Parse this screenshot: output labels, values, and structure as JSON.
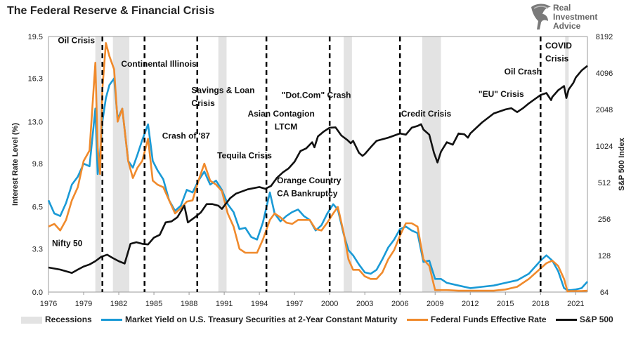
{
  "title": "The Federal Reserve & Financial Crisis",
  "logo": {
    "lines": [
      "Real",
      "Investment",
      "Advice"
    ]
  },
  "chart_data": {
    "type": "line",
    "title": "The Federal Reserve & Financial Crisis",
    "ylabel_left": "Interest Rate Level (%)",
    "ylabel_right": "S&P 500 Index",
    "ylim_left": [
      0,
      19.5
    ],
    "ylim_right": [
      64,
      8192
    ],
    "right_scale": "log2",
    "xlim": [
      1976,
      2022
    ],
    "x_ticks": [
      "1976",
      "1979",
      "1982",
      "1985",
      "1988",
      "1991",
      "1994",
      "1997",
      "2000",
      "2003",
      "2006",
      "2009",
      "2012",
      "2015",
      "2018",
      "2021"
    ],
    "y_ticks_left": [
      "0.0",
      "3.3",
      "6.5",
      "9.8",
      "13.0",
      "16.3",
      "19.5"
    ],
    "y_ticks_right": [
      "64",
      "128",
      "256",
      "512",
      "1024",
      "2048",
      "4096",
      "8192"
    ],
    "legend_position": "bottom",
    "recessions": [
      [
        1980.0,
        1980.5
      ],
      [
        1981.5,
        1982.9
      ],
      [
        1990.5,
        1991.2
      ],
      [
        2001.2,
        2001.9
      ],
      [
        2007.9,
        2009.5
      ],
      [
        2020.1,
        2020.4
      ]
    ],
    "crisis_lines": [
      1980.6,
      1984.2,
      1988.7,
      1994.6,
      2000.0,
      2006.0,
      2018.0
    ],
    "annotations": [
      {
        "text": "Oil Crisis",
        "x": 1976.8,
        "y": 19.0
      },
      {
        "text": "Continental Illinois",
        "x": 1982.2,
        "y": 17.2
      },
      {
        "text": "Savings & Loan",
        "x": 1988.2,
        "y": 15.2
      },
      {
        "text": "Crisis",
        "x": 1988.2,
        "y": 14.2
      },
      {
        "text": "\"Dot.Com\" Crash",
        "x": 1995.9,
        "y": 14.8
      },
      {
        "text": "Asian Contagion",
        "x": 1993.0,
        "y": 13.4
      },
      {
        "text": "LTCM",
        "x": 1995.3,
        "y": 12.4
      },
      {
        "text": "Credit Crisis",
        "x": 2006.1,
        "y": 13.4
      },
      {
        "text": "\"EU\" Crisis",
        "x": 2012.7,
        "y": 14.9
      },
      {
        "text": "Oil Crash",
        "x": 2014.9,
        "y": 16.6
      },
      {
        "text": "COVID",
        "x": 2018.4,
        "y": 18.6
      },
      {
        "text": "Crisis",
        "x": 2018.4,
        "y": 17.6
      },
      {
        "text": "Crash of '87",
        "x": 1985.7,
        "y": 11.7
      },
      {
        "text": "Tequila Crisis",
        "x": 1990.4,
        "y": 10.2
      },
      {
        "text": "Orange Country",
        "x": 1995.5,
        "y": 8.3
      },
      {
        "text": "CA Bankruptcy",
        "x": 1995.5,
        "y": 7.3
      },
      {
        "text": "Nifty 50",
        "x": 1976.3,
        "y": 3.5
      }
    ],
    "series": [
      {
        "name": "Market Yield on U.S. Treasury Securities at 2-Year Constant Maturity",
        "color": "#1a9ad6",
        "axis": "left",
        "x": [
          1976,
          1976.5,
          1977,
          1977.5,
          1978,
          1978.5,
          1979,
          1979.5,
          1980,
          1980.2,
          1980.4,
          1980.6,
          1980.9,
          1981.2,
          1981.6,
          1981.9,
          1982.3,
          1982.8,
          1983.2,
          1983.6,
          1984,
          1984.5,
          1984.9,
          1985.3,
          1985.8,
          1986.3,
          1986.8,
          1987.3,
          1987.8,
          1988.3,
          1988.8,
          1989.3,
          1989.8,
          1990.3,
          1990.8,
          1991.3,
          1991.8,
          1992.3,
          1992.8,
          1993.3,
          1993.8,
          1994.3,
          1994.9,
          1995.3,
          1995.8,
          1996.3,
          1996.8,
          1997.3,
          1997.8,
          1998.3,
          1998.8,
          1999.3,
          1999.8,
          2000.3,
          2000.7,
          2001.2,
          2001.6,
          2002,
          2002.5,
          2003,
          2003.5,
          2004,
          2004.5,
          2005,
          2005.5,
          2006,
          2006.5,
          2007,
          2007.5,
          2008,
          2008.5,
          2009,
          2009.5,
          2010,
          2011,
          2012,
          2013,
          2014,
          2015,
          2016,
          2017,
          2018,
          2018.5,
          2019,
          2019.5,
          2020,
          2020.3,
          2020.6,
          2021,
          2021.5,
          2022
        ],
        "values": [
          7.0,
          6.0,
          5.8,
          6.8,
          8.2,
          8.8,
          9.8,
          9.6,
          14.0,
          9.0,
          10.5,
          13.0,
          14.8,
          15.8,
          16.3,
          13.2,
          14.0,
          10.0,
          9.5,
          10.5,
          11.6,
          12.8,
          10.0,
          9.3,
          8.6,
          7.0,
          6.2,
          6.6,
          7.8,
          7.6,
          8.5,
          9.2,
          8.2,
          8.5,
          7.8,
          6.7,
          6.1,
          4.8,
          4.9,
          4.2,
          4.0,
          5.3,
          7.6,
          6.0,
          5.4,
          5.8,
          6.1,
          6.3,
          5.8,
          5.5,
          4.7,
          5.1,
          6.0,
          6.7,
          6.3,
          4.4,
          3.2,
          2.8,
          2.1,
          1.5,
          1.4,
          1.7,
          2.5,
          3.4,
          4.0,
          4.8,
          5.0,
          4.7,
          4.5,
          2.3,
          2.4,
          1.0,
          1.0,
          0.7,
          0.5,
          0.3,
          0.4,
          0.5,
          0.7,
          0.9,
          1.4,
          2.4,
          2.8,
          2.4,
          1.6,
          0.3,
          0.15,
          0.15,
          0.2,
          0.3,
          0.8
        ]
      },
      {
        "name": "Federal Funds Effective Rate",
        "color": "#f08a2c",
        "axis": "left",
        "x": [
          1976,
          1976.5,
          1977,
          1977.5,
          1978,
          1978.5,
          1979,
          1979.5,
          1980,
          1980.2,
          1980.4,
          1980.6,
          1980.9,
          1981.2,
          1981.6,
          1981.9,
          1982.3,
          1982.8,
          1983.2,
          1983.6,
          1984,
          1984.5,
          1984.9,
          1985.3,
          1985.8,
          1986.3,
          1986.8,
          1987.3,
          1987.8,
          1988.3,
          1988.8,
          1989.3,
          1989.8,
          1990.3,
          1990.8,
          1991.3,
          1991.8,
          1992.3,
          1992.8,
          1993.3,
          1993.8,
          1994.3,
          1994.9,
          1995.3,
          1995.8,
          1996.3,
          1996.8,
          1997.3,
          1997.8,
          1998.3,
          1998.8,
          1999.3,
          1999.8,
          2000.3,
          2000.7,
          2001.2,
          2001.6,
          2002,
          2002.5,
          2003,
          2003.5,
          2004,
          2004.5,
          2005,
          2005.5,
          2006,
          2006.5,
          2007,
          2007.5,
          2008,
          2008.5,
          2009,
          2009.5,
          2010,
          2011,
          2012,
          2013,
          2014,
          2015,
          2016,
          2017,
          2018,
          2018.5,
          2019,
          2019.5,
          2020,
          2020.3,
          2020.6,
          2021,
          2021.5,
          2022
        ],
        "values": [
          5.0,
          5.2,
          4.7,
          5.5,
          7.0,
          8.0,
          10.0,
          10.8,
          17.5,
          11.0,
          9.0,
          15.5,
          19.0,
          18.0,
          17.0,
          13.0,
          14.0,
          10.0,
          8.7,
          9.5,
          10.0,
          11.7,
          8.5,
          8.2,
          8.0,
          7.0,
          6.0,
          6.4,
          6.9,
          7.0,
          8.5,
          9.8,
          8.5,
          8.2,
          7.7,
          6.0,
          5.0,
          3.3,
          3.0,
          3.0,
          3.0,
          4.0,
          5.5,
          6.0,
          5.7,
          5.3,
          5.2,
          5.5,
          5.5,
          5.5,
          4.8,
          4.7,
          5.3,
          6.0,
          6.5,
          4.5,
          2.5,
          1.7,
          1.7,
          1.2,
          1.0,
          1.0,
          1.5,
          2.5,
          3.2,
          4.3,
          5.25,
          5.25,
          5.0,
          2.5,
          2.0,
          0.15,
          0.15,
          0.15,
          0.1,
          0.1,
          0.1,
          0.1,
          0.2,
          0.4,
          1.0,
          1.8,
          2.2,
          2.4,
          2.0,
          1.0,
          0.05,
          0.08,
          0.08,
          0.08,
          0.1
        ]
      },
      {
        "name": "S&P 500",
        "color": "#111111",
        "axis": "right",
        "x": [
          1976,
          1977,
          1978,
          1978.5,
          1979,
          1979.5,
          1980,
          1980.5,
          1981,
          1981.5,
          1982,
          1982.5,
          1983,
          1983.5,
          1984,
          1984.5,
          1985,
          1985.5,
          1986,
          1986.5,
          1987,
          1987.6,
          1987.9,
          1988.5,
          1989,
          1989.5,
          1990,
          1990.5,
          1990.8,
          1991.5,
          1992,
          1993,
          1994,
          1994.5,
          1995,
          1995.5,
          1996,
          1996.5,
          1997,
          1997.5,
          1998,
          1998.5,
          1998.7,
          1999,
          1999.5,
          2000,
          2000.5,
          2001,
          2001.5,
          2001.8,
          2002,
          2002.5,
          2002.8,
          2003,
          2003.5,
          2004,
          2005,
          2006,
          2006.5,
          2007,
          2007.5,
          2007.8,
          2008,
          2008.5,
          2008.9,
          2009.2,
          2009.5,
          2010,
          2010.5,
          2011,
          2011.5,
          2011.8,
          2012,
          2013,
          2014,
          2015,
          2015.5,
          2016,
          2016.5,
          2017,
          2018,
          2018.5,
          2018.9,
          2019,
          2019.5,
          2020,
          2020.2,
          2020.4,
          2020.8,
          2021,
          2021.5,
          2022
        ],
        "values": [
          102,
          98,
          92,
          98,
          104,
          108,
          115,
          125,
          130,
          122,
          115,
          110,
          160,
          165,
          160,
          158,
          180,
          190,
          240,
          245,
          265,
          330,
          240,
          265,
          290,
          340,
          340,
          330,
          310,
          380,
          415,
          450,
          470,
          455,
          480,
          560,
          620,
          670,
          760,
          930,
          980,
          1100,
          1000,
          1230,
          1350,
          1450,
          1460,
          1250,
          1150,
          1080,
          1130,
          900,
          850,
          880,
          1000,
          1130,
          1200,
          1300,
          1270,
          1450,
          1500,
          1550,
          1400,
          1270,
          900,
          750,
          920,
          1100,
          1050,
          1300,
          1280,
          1200,
          1300,
          1600,
          1900,
          2050,
          2100,
          1950,
          2100,
          2300,
          2700,
          2800,
          2450,
          2600,
          2950,
          3200,
          2550,
          3000,
          3400,
          3750,
          4300,
          4700
        ]
      }
    ]
  }
}
